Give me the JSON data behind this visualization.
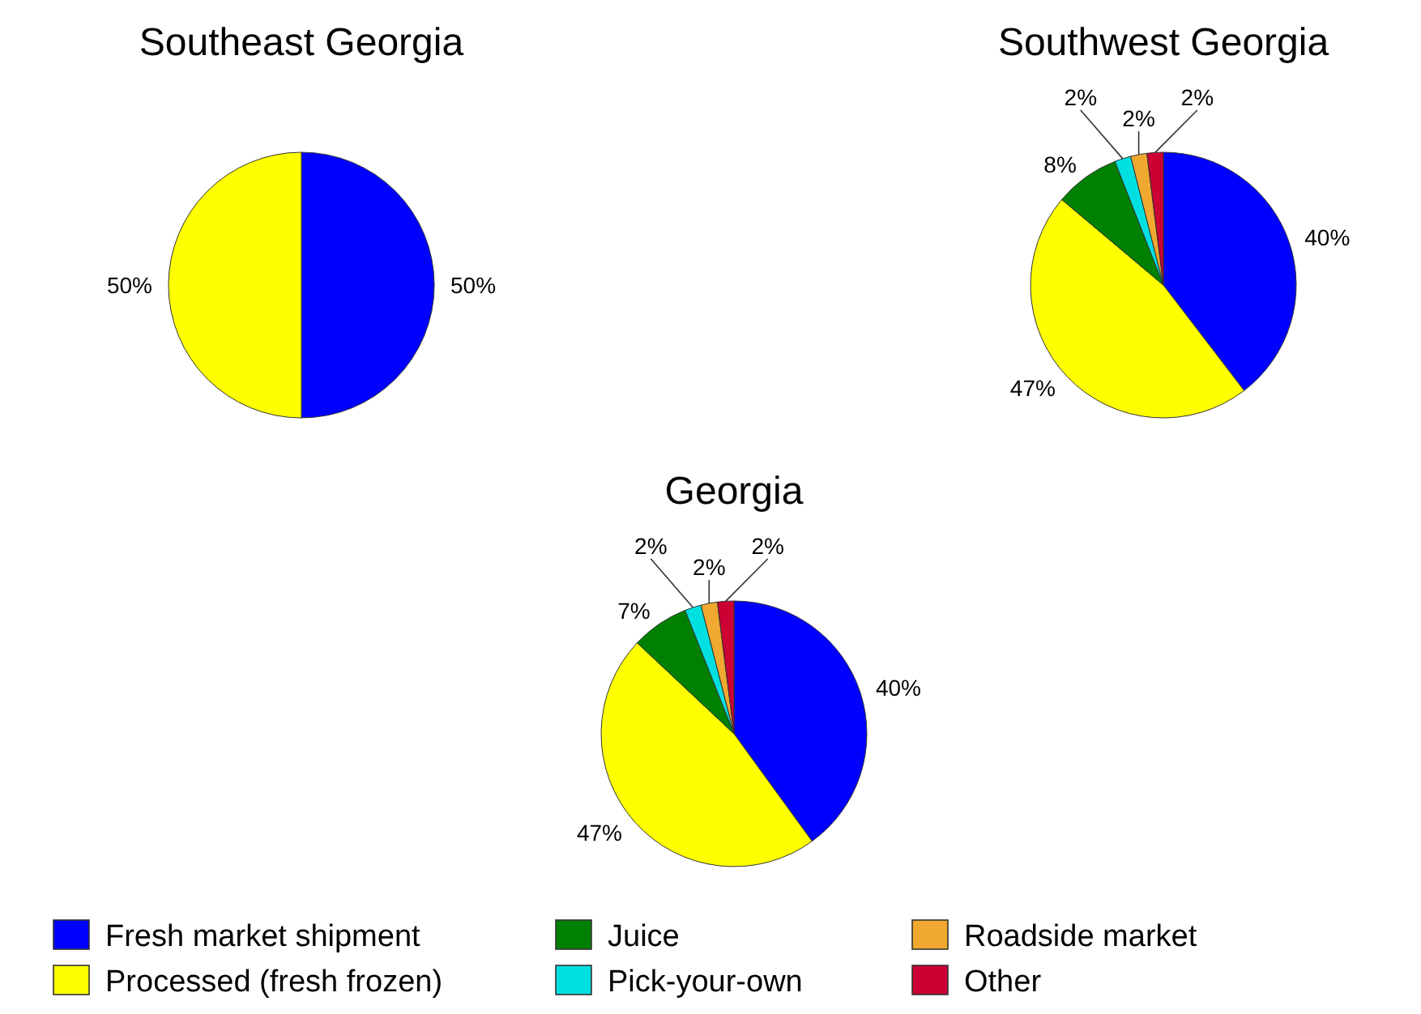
{
  "chart_data": [
    {
      "type": "pie",
      "title": "Southeast Georgia",
      "categories": [
        null,
        null
      ],
      "values": [
        50,
        50
      ],
      "colors": [
        "#0000ff",
        "#ffff00"
      ],
      "value_labels": [
        "50%",
        "50%"
      ]
    },
    {
      "type": "pie",
      "title": "Southwest Georgia",
      "categories": [
        null,
        null,
        null,
        null,
        null,
        null
      ],
      "values": [
        40,
        47,
        8,
        2,
        2,
        2
      ],
      "colors": [
        "#0000ff",
        "#ffff00",
        "#008000",
        "#00e0e0",
        "#f0a830",
        "#cc0033"
      ],
      "value_labels": [
        "40%",
        "47%",
        "8%",
        "2%",
        "2%",
        "2%"
      ]
    },
    {
      "type": "pie",
      "title": "Georgia",
      "categories": [
        "Fresh market shipment",
        "Processed (fresh frozen)",
        "Juice",
        "Pick-your-own",
        "Roadside market",
        "Other"
      ],
      "values": [
        40,
        47,
        7,
        2,
        2,
        2
      ],
      "colors": [
        "#0000ff",
        "#ffff00",
        "#008000",
        "#00e0e0",
        "#f0a830",
        "#cc0033"
      ],
      "value_labels": [
        "40%",
        "47%",
        "7%",
        "2%",
        "2%",
        "2%"
      ],
      "legend": "bottom"
    }
  ]
}
